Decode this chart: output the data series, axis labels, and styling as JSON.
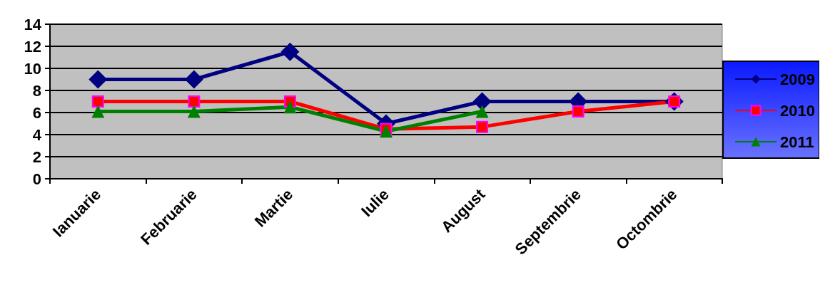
{
  "chart_data": {
    "type": "line",
    "categories": [
      "Ianuarie",
      "Februarie",
      "Martie",
      "Iulie",
      "August",
      "Septembrie",
      "Octombrie"
    ],
    "series": [
      {
        "name": "2009",
        "color": "#000080",
        "marker": "diamond",
        "values": [
          9,
          9,
          11.5,
          5,
          7,
          7,
          7
        ]
      },
      {
        "name": "2010",
        "color": "#ff0000",
        "marker": "square",
        "values": [
          7,
          7,
          7,
          4.5,
          4.7,
          6.1,
          7
        ]
      },
      {
        "name": "2011",
        "color": "#008000",
        "marker": "triangle",
        "values": [
          6.1,
          6.1,
          6.5,
          4.3,
          6.1,
          null,
          null
        ]
      }
    ],
    "ylim": [
      0,
      14
    ],
    "yticks": [
      0,
      2,
      4,
      6,
      8,
      10,
      12,
      14
    ],
    "grid": "y",
    "legend": "right",
    "line_style": "solid"
  }
}
